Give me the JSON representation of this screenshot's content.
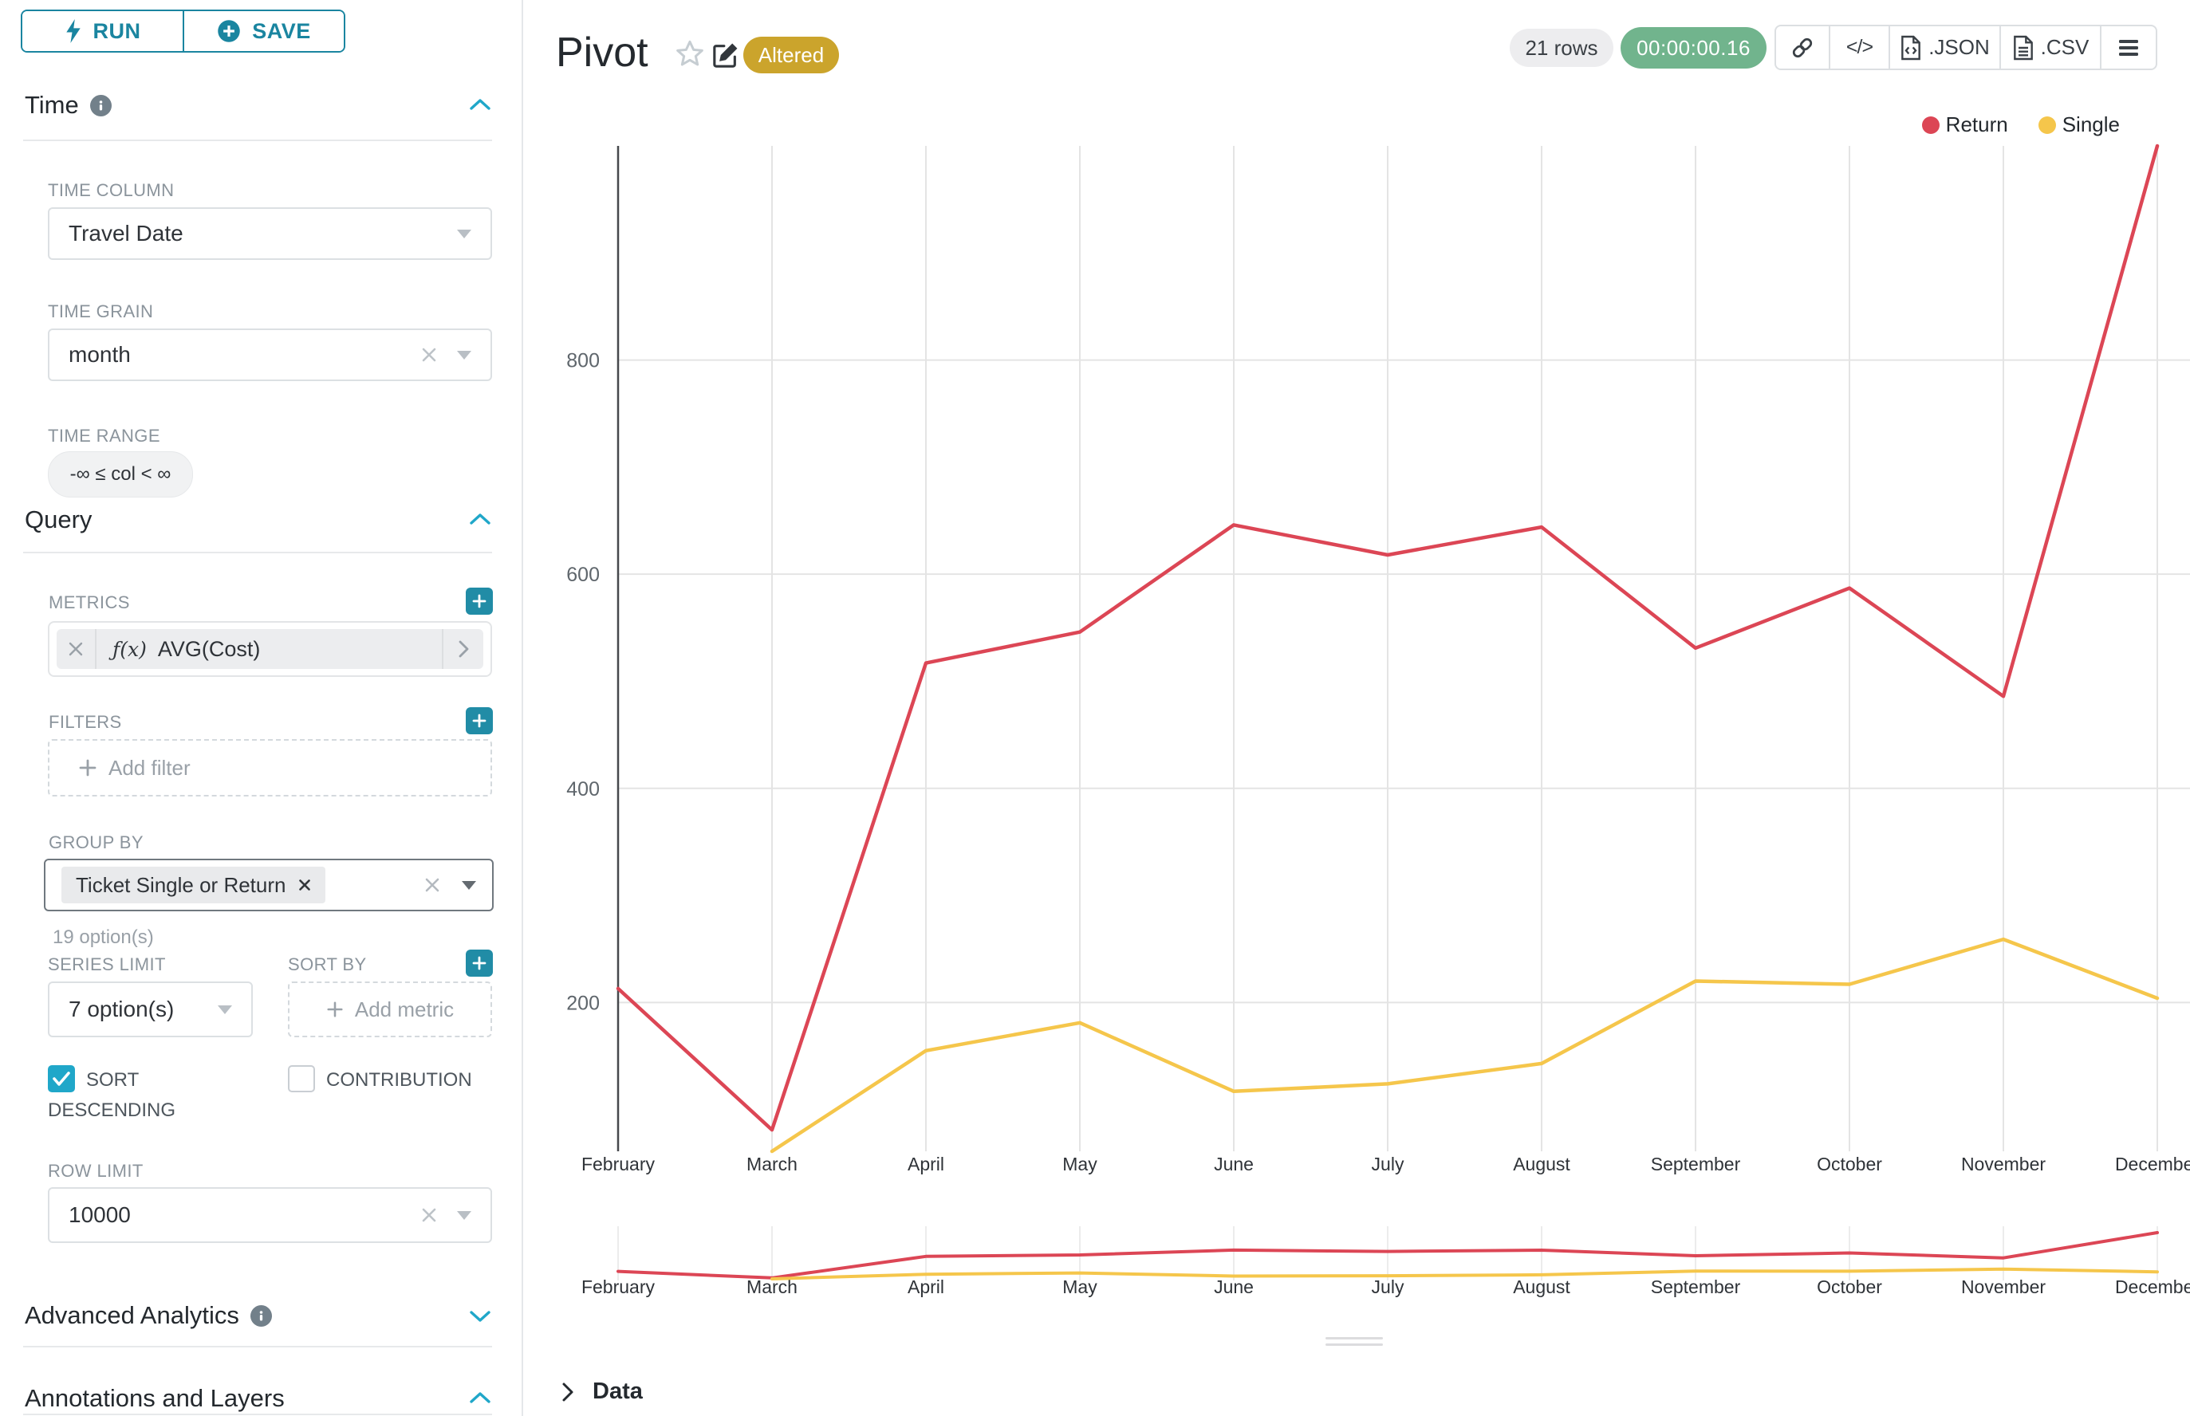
{
  "sidebar": {
    "run_label": "RUN",
    "save_label": "SAVE",
    "time": {
      "title": "Time",
      "column_label": "TIME COLUMN",
      "column_value": "Travel Date",
      "grain_label": "TIME GRAIN",
      "grain_value": "month",
      "range_label": "TIME RANGE",
      "range_value": "-∞ ≤ col < ∞"
    },
    "query": {
      "title": "Query",
      "metrics_label": "METRICS",
      "metric_fx": "ƒ(x)",
      "metric_value": "AVG(Cost)",
      "filters_label": "FILTERS",
      "add_filter": "Add filter",
      "group_by_label": "GROUP BY",
      "group_by_tag": "Ticket Single or Return",
      "group_by_hint": "19 option(s)",
      "series_limit_label": "SERIES LIMIT",
      "series_limit_value": "7 option(s)",
      "sort_by_label": "SORT BY",
      "add_metric": "Add metric",
      "sort_descending_label": "SORT DESCENDING",
      "sort_descending_checked": true,
      "contribution_label": "CONTRIBUTION",
      "contribution_checked": false,
      "row_limit_label": "ROW LIMIT",
      "row_limit_value": "10000"
    },
    "advanced_title": "Advanced Analytics",
    "annotations_title": "Annotations and Layers"
  },
  "header": {
    "title": "Pivot",
    "altered_badge": "Altered",
    "rows_badge": "21 rows",
    "timer": "00:00:00.16",
    "code_icon_text": "</>",
    "json_label": ".JSON",
    "csv_label": ".CSV"
  },
  "chart_data": {
    "type": "line",
    "title": "Pivot",
    "x": [
      "February",
      "March",
      "April",
      "May",
      "June",
      "July",
      "August",
      "September",
      "October",
      "November",
      "December"
    ],
    "series": [
      {
        "name": "Return",
        "color": "#DC4655",
        "values": [
          213,
          81,
          517,
          546,
          646,
          618,
          644,
          531,
          587,
          486,
          1000
        ]
      },
      {
        "name": "Single",
        "color": "#F5C64B",
        "values": [
          null,
          61,
          155,
          181,
          117,
          124,
          143,
          220,
          217,
          259,
          204
        ]
      }
    ],
    "ylabel": "",
    "xlabel": "",
    "yticks": [
      200,
      400,
      600,
      800
    ],
    "ylim": [
      61,
      1000
    ],
    "grid": true,
    "legend_position": "top-right",
    "has_range_preview": true
  },
  "data_panel": {
    "label": "Data"
  }
}
